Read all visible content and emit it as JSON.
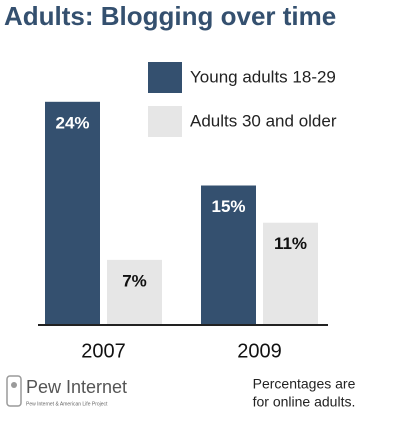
{
  "chart_data": {
    "type": "bar",
    "title": "Adults: Blogging over time",
    "categories": [
      "2007",
      "2009"
    ],
    "series": [
      {
        "name": "Young adults 18-29",
        "color": "#34506f",
        "values": [
          24,
          15
        ],
        "value_labels": [
          "24%",
          "15%"
        ]
      },
      {
        "name": "Adults 30 and older",
        "color": "#e6e6e6",
        "values": [
          7,
          11
        ],
        "value_labels": [
          "7%",
          "11%"
        ]
      }
    ],
    "note": [
      "Percentages are",
      "for online adults."
    ],
    "logo": {
      "name": "Pew Internet",
      "subtitle": "Pew Internet & American Life Project"
    }
  }
}
